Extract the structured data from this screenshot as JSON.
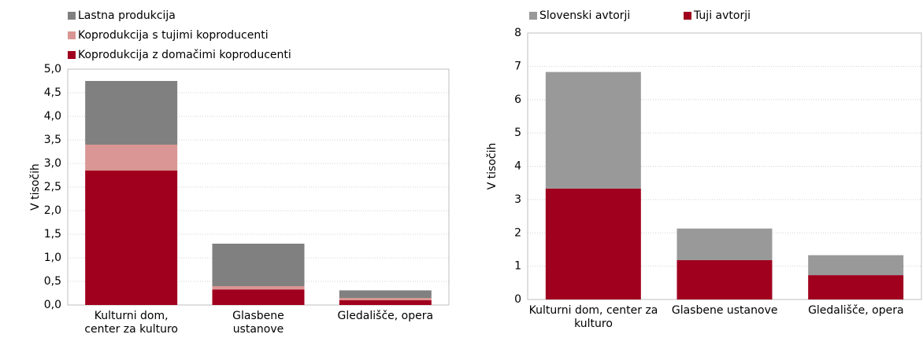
{
  "chart_data": [
    {
      "type": "bar",
      "stacked": true,
      "y_label": "V tisočih",
      "categories": [
        "Kulturni dom, center za kulturo",
        "Glasbene ustanove",
        "Gledališče, opera"
      ],
      "series": [
        {
          "name": "Lastna produkcija",
          "color": "#808080",
          "values": [
            1.35,
            0.9,
            0.16
          ]
        },
        {
          "name": "Koprodukcija s tujimi koproducenti",
          "color": "#d99694",
          "values": [
            0.55,
            0.07,
            0.05
          ]
        },
        {
          "name": "Koprodukcija z domačimi koproducenti",
          "color": "#a0001e",
          "values": [
            2.85,
            0.33,
            0.1
          ]
        }
      ],
      "ylim": [
        0,
        5
      ],
      "yticks": [
        {
          "value": 0,
          "label": "0,0"
        },
        {
          "value": 0.5,
          "label": "0,5"
        },
        {
          "value": 1,
          "label": "1,0"
        },
        {
          "value": 1.5,
          "label": "1,5"
        },
        {
          "value": 2,
          "label": "2,0"
        },
        {
          "value": 2.5,
          "label": "2,5"
        },
        {
          "value": 3,
          "label": "3,0"
        },
        {
          "value": 3.5,
          "label": "3,5"
        },
        {
          "value": 4,
          "label": "4,0"
        },
        {
          "value": 4.5,
          "label": "4,5"
        },
        {
          "value": 5,
          "label": "5,0"
        }
      ],
      "grid": true,
      "legend": "top-left-vertical"
    },
    {
      "type": "bar",
      "stacked": true,
      "y_label": "V tisočih",
      "categories": [
        "Kulturni dom, center za kulturo",
        "Glasbene ustanove",
        "Gledališče, opera"
      ],
      "series": [
        {
          "name": "Slovenski avtorji",
          "color": "#999999",
          "values": [
            3.5,
            0.95,
            0.6
          ]
        },
        {
          "name": "Tuji avtorji",
          "color": "#a0001e",
          "values": [
            3.33,
            1.18,
            0.73
          ]
        }
      ],
      "ylim": [
        0,
        8
      ],
      "yticks": [
        0,
        1,
        2,
        3,
        4,
        5,
        6,
        7,
        8
      ],
      "grid": true,
      "legend": "top-horizontal"
    }
  ]
}
